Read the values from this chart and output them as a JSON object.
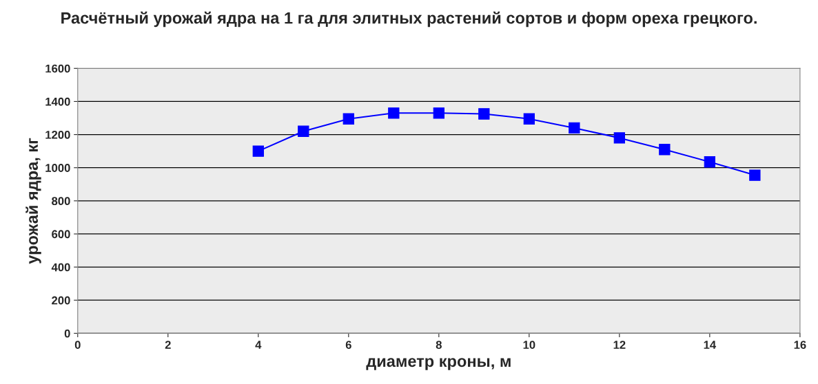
{
  "chart_data": {
    "type": "line",
    "title": "Расчётный урожай ядра на 1 га для элитных растений сортов и форм ореха грецкого.",
    "xlabel": "диаметр кроны, м",
    "ylabel": "урожай ядра, кг",
    "x": [
      4,
      5,
      6,
      7,
      8,
      9,
      10,
      11,
      12,
      13,
      14,
      15
    ],
    "series": [
      {
        "color": "#0000ff",
        "values": [
          1100,
          1220,
          1295,
          1330,
          1330,
          1325,
          1295,
          1240,
          1180,
          1110,
          1035,
          955
        ]
      }
    ],
    "xlim": [
      0,
      16
    ],
    "xticks": [
      0,
      2,
      4,
      6,
      8,
      10,
      12,
      14,
      16
    ],
    "ylim": [
      0,
      1600
    ],
    "yticks": [
      0,
      200,
      400,
      600,
      800,
      1000,
      1200,
      1400,
      1600
    ],
    "grid": "y",
    "marker": "square",
    "line_style": "solid"
  }
}
